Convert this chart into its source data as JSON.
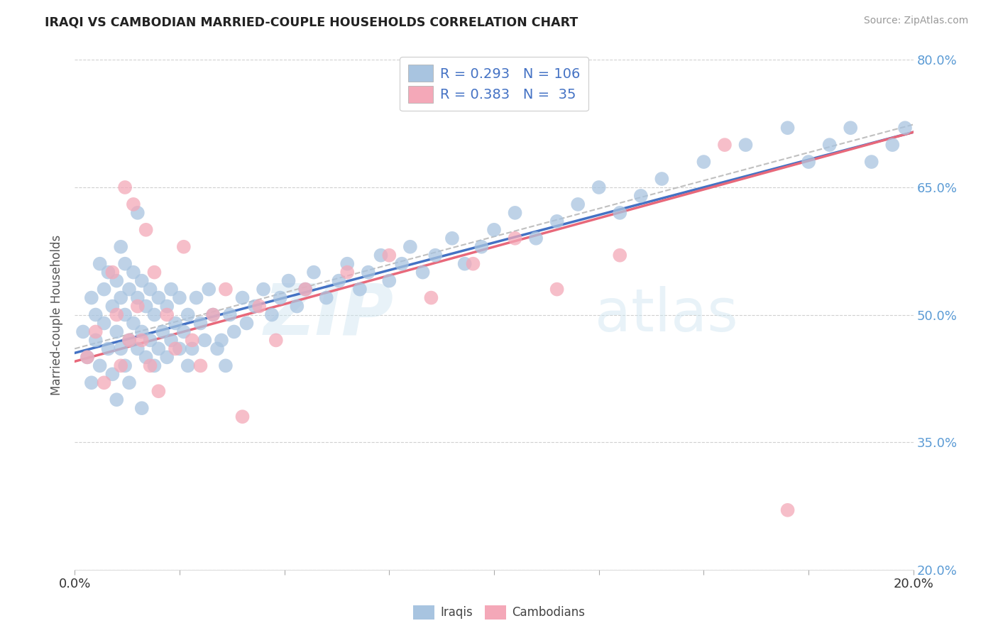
{
  "title": "IRAQI VS CAMBODIAN MARRIED-COUPLE HOUSEHOLDS CORRELATION CHART",
  "source": "Source: ZipAtlas.com",
  "ylabel": "Married-couple Households",
  "ytick_labels": [
    "20.0%",
    "35.0%",
    "50.0%",
    "65.0%",
    "80.0%"
  ],
  "ytick_values": [
    0.2,
    0.35,
    0.5,
    0.65,
    0.8
  ],
  "xtick_values": [
    0.0,
    0.025,
    0.05,
    0.075,
    0.1,
    0.125,
    0.15,
    0.175,
    0.2
  ],
  "xlim": [
    0.0,
    0.2
  ],
  "ylim": [
    0.2,
    0.8
  ],
  "color_iraqi": "#a8c4e0",
  "color_cambodian": "#f4a8b8",
  "trendline_color_iraqi": "#4472c4",
  "trendline_color_cambodian": "#e8687a",
  "trendline_color_avg": "#c0c0c0",
  "legend_label1": "Iraqis",
  "legend_label2": "Cambodians",
  "legend_r1": "R = 0.293",
  "legend_n1": "N = 106",
  "legend_r2": "R = 0.383",
  "legend_n2": "N =  35",
  "iraqi_x": [
    0.002,
    0.003,
    0.004,
    0.004,
    0.005,
    0.005,
    0.006,
    0.006,
    0.007,
    0.007,
    0.008,
    0.008,
    0.009,
    0.009,
    0.01,
    0.01,
    0.01,
    0.011,
    0.011,
    0.011,
    0.012,
    0.012,
    0.012,
    0.013,
    0.013,
    0.013,
    0.014,
    0.014,
    0.015,
    0.015,
    0.015,
    0.016,
    0.016,
    0.016,
    0.017,
    0.017,
    0.018,
    0.018,
    0.019,
    0.019,
    0.02,
    0.02,
    0.021,
    0.022,
    0.022,
    0.023,
    0.023,
    0.024,
    0.025,
    0.025,
    0.026,
    0.027,
    0.027,
    0.028,
    0.029,
    0.03,
    0.031,
    0.032,
    0.033,
    0.034,
    0.035,
    0.036,
    0.037,
    0.038,
    0.04,
    0.041,
    0.043,
    0.045,
    0.047,
    0.049,
    0.051,
    0.053,
    0.055,
    0.057,
    0.06,
    0.063,
    0.065,
    0.068,
    0.07,
    0.073,
    0.075,
    0.078,
    0.08,
    0.083,
    0.086,
    0.09,
    0.093,
    0.097,
    0.1,
    0.105,
    0.11,
    0.115,
    0.12,
    0.125,
    0.13,
    0.135,
    0.14,
    0.15,
    0.16,
    0.17,
    0.175,
    0.18,
    0.185,
    0.19,
    0.195,
    0.198
  ],
  "iraqi_y": [
    0.48,
    0.45,
    0.42,
    0.52,
    0.47,
    0.5,
    0.44,
    0.56,
    0.49,
    0.53,
    0.46,
    0.55,
    0.43,
    0.51,
    0.48,
    0.54,
    0.4,
    0.46,
    0.52,
    0.58,
    0.44,
    0.5,
    0.56,
    0.47,
    0.53,
    0.42,
    0.49,
    0.55,
    0.46,
    0.52,
    0.62,
    0.48,
    0.54,
    0.39,
    0.45,
    0.51,
    0.47,
    0.53,
    0.44,
    0.5,
    0.46,
    0.52,
    0.48,
    0.45,
    0.51,
    0.47,
    0.53,
    0.49,
    0.46,
    0.52,
    0.48,
    0.44,
    0.5,
    0.46,
    0.52,
    0.49,
    0.47,
    0.53,
    0.5,
    0.46,
    0.47,
    0.44,
    0.5,
    0.48,
    0.52,
    0.49,
    0.51,
    0.53,
    0.5,
    0.52,
    0.54,
    0.51,
    0.53,
    0.55,
    0.52,
    0.54,
    0.56,
    0.53,
    0.55,
    0.57,
    0.54,
    0.56,
    0.58,
    0.55,
    0.57,
    0.59,
    0.56,
    0.58,
    0.6,
    0.62,
    0.59,
    0.61,
    0.63,
    0.65,
    0.62,
    0.64,
    0.66,
    0.68,
    0.7,
    0.72,
    0.68,
    0.7,
    0.72,
    0.68,
    0.7,
    0.72
  ],
  "cambodian_x": [
    0.003,
    0.005,
    0.007,
    0.009,
    0.01,
    0.011,
    0.012,
    0.013,
    0.014,
    0.015,
    0.016,
    0.017,
    0.018,
    0.019,
    0.02,
    0.022,
    0.024,
    0.026,
    0.028,
    0.03,
    0.033,
    0.036,
    0.04,
    0.044,
    0.048,
    0.055,
    0.065,
    0.075,
    0.085,
    0.095,
    0.105,
    0.115,
    0.13,
    0.155,
    0.17
  ],
  "cambodian_y": [
    0.45,
    0.48,
    0.42,
    0.55,
    0.5,
    0.44,
    0.65,
    0.47,
    0.63,
    0.51,
    0.47,
    0.6,
    0.44,
    0.55,
    0.41,
    0.5,
    0.46,
    0.58,
    0.47,
    0.44,
    0.5,
    0.53,
    0.38,
    0.51,
    0.47,
    0.53,
    0.55,
    0.57,
    0.52,
    0.56,
    0.59,
    0.53,
    0.57,
    0.7,
    0.27
  ]
}
